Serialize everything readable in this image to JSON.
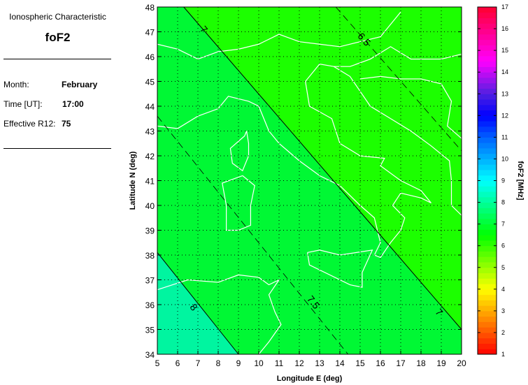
{
  "panel": {
    "heading": "Ionospheric Characteristic",
    "characteristic": "foF2",
    "month_label": "Month:",
    "month": "February",
    "time_label": "Time [UT]:",
    "time": "17:00",
    "r12_label": "Effective R12:",
    "r12": "75"
  },
  "chart_data": {
    "type": "contour-map",
    "xlabel": "Longitude E (deg)",
    "ylabel": "Latitude N (deg)",
    "xlim": [
      5,
      20
    ],
    "ylim": [
      34,
      48
    ],
    "xticks": [
      "5",
      "6",
      "7",
      "8",
      "9",
      "10",
      "11",
      "12",
      "13",
      "14",
      "15",
      "16",
      "17",
      "18",
      "19",
      "20"
    ],
    "yticks": [
      "34",
      "35",
      "36",
      "37",
      "38",
      "39",
      "40",
      "41",
      "42",
      "43",
      "44",
      "45",
      "46",
      "47",
      "48"
    ],
    "grid": true,
    "colorbar": {
      "label": "foF2 [MHz]",
      "range": [
        1,
        17
      ],
      "ticks": [
        "1",
        "2",
        "3",
        "4",
        "5",
        "6",
        "7",
        "8",
        "9",
        "10",
        "11",
        "12",
        "13",
        "14",
        "15",
        "16",
        "17"
      ]
    },
    "regions": [
      {
        "range": "6.5-7",
        "color": "#1cff00"
      },
      {
        "range": "7-7.5",
        "color": "#00f834"
      },
      {
        "range": "7.5-8",
        "color": "#00f834"
      },
      {
        "range": "8-8.5",
        "color": "#00f5a0"
      }
    ],
    "contours": [
      {
        "level": "6.5",
        "style": "dashed",
        "points": [
          [
            13.8,
            48
          ],
          [
            20,
            42.2
          ]
        ],
        "label_at": [
          15.2,
          46.7
        ]
      },
      {
        "level": "7",
        "style": "solid",
        "points": [
          [
            6.3,
            48
          ],
          [
            20,
            35
          ]
        ],
        "label_at": [
          [
            7.3,
            47.1
          ],
          [
            18.9,
            35.7
          ]
        ]
      },
      {
        "level": "7.5",
        "style": "dashed",
        "points": [
          [
            5,
            43.6
          ],
          [
            14.4,
            34
          ]
        ],
        "label_at": [
          12.7,
          36.1
        ]
      },
      {
        "level": "8",
        "style": "solid",
        "points": [
          [
            5,
            38.1
          ],
          [
            9,
            34
          ]
        ],
        "label_at": [
          6.8,
          35.9
        ]
      }
    ],
    "coastlines": [
      [
        [
          5,
          43.2
        ],
        [
          6,
          43.1
        ],
        [
          7,
          43.6
        ],
        [
          8,
          43.9
        ],
        [
          8.5,
          44.4
        ],
        [
          9.5,
          44.2
        ],
        [
          10,
          44
        ],
        [
          10.5,
          43
        ],
        [
          11,
          42.5
        ],
        [
          12,
          41.8
        ],
        [
          13,
          41.2
        ],
        [
          14,
          40.8
        ],
        [
          15,
          40
        ],
        [
          15.7,
          39.5
        ],
        [
          16,
          38.5
        ],
        [
          15.7,
          38
        ],
        [
          16,
          37.9
        ],
        [
          16.5,
          38.5
        ],
        [
          17,
          39
        ],
        [
          17.2,
          39.5
        ],
        [
          16.6,
          40
        ],
        [
          17,
          40.5
        ],
        [
          18,
          40.3
        ],
        [
          18.5,
          40.1
        ],
        [
          18,
          40.6
        ],
        [
          17,
          41
        ],
        [
          16,
          41.6
        ],
        [
          16.2,
          41.9
        ],
        [
          15,
          42
        ],
        [
          14,
          42.5
        ],
        [
          13.6,
          43.5
        ],
        [
          12.5,
          44
        ],
        [
          12.3,
          45
        ],
        [
          13,
          45.7
        ],
        [
          13.7,
          45.6
        ],
        [
          14.5,
          45.2
        ],
        [
          15,
          44.6
        ],
        [
          15.5,
          44
        ],
        [
          16.5,
          43.5
        ],
        [
          17.5,
          43
        ],
        [
          18.5,
          42.4
        ],
        [
          19.4,
          41.8
        ],
        [
          19.5,
          41
        ],
        [
          19.5,
          40
        ],
        [
          20,
          39.6
        ]
      ],
      [
        [
          9.4,
          43
        ],
        [
          9.5,
          42.5
        ],
        [
          9.5,
          42
        ],
        [
          9.2,
          41.4
        ],
        [
          8.7,
          41.7
        ],
        [
          8.6,
          42.3
        ],
        [
          9.3,
          42.8
        ],
        [
          9.4,
          43
        ]
      ],
      [
        [
          9.2,
          41.2
        ],
        [
          9.8,
          40.8
        ],
        [
          9.6,
          40
        ],
        [
          9.6,
          39.2
        ],
        [
          9,
          39
        ],
        [
          8.4,
          39
        ],
        [
          8.4,
          40
        ],
        [
          8.2,
          40.9
        ],
        [
          9.2,
          41.2
        ]
      ],
      [
        [
          12.4,
          38.1
        ],
        [
          13,
          38.2
        ],
        [
          14,
          38
        ],
        [
          15.6,
          38.2
        ],
        [
          15.1,
          37.3
        ],
        [
          15.1,
          36.7
        ],
        [
          14.5,
          36.8
        ],
        [
          12.5,
          37.6
        ],
        [
          12.4,
          38.1
        ]
      ],
      [
        [
          5,
          36.6
        ],
        [
          6.5,
          37
        ],
        [
          8,
          36.9
        ],
        [
          9,
          37.2
        ],
        [
          10,
          37.1
        ],
        [
          10.5,
          36.8
        ],
        [
          11,
          37
        ],
        [
          10.5,
          36.4
        ],
        [
          10.8,
          35.7
        ],
        [
          11.1,
          35.2
        ],
        [
          10.5,
          34.5
        ],
        [
          10,
          34
        ]
      ],
      [
        [
          5,
          46.5
        ],
        [
          6,
          46.3
        ],
        [
          7,
          45.9
        ],
        [
          8,
          46.2
        ],
        [
          9,
          46.3
        ],
        [
          10,
          46.5
        ],
        [
          11,
          46.9
        ],
        [
          12,
          46.6
        ],
        [
          13,
          46.5
        ],
        [
          14,
          46.4
        ],
        [
          15,
          46.6
        ],
        [
          16,
          46.8
        ],
        [
          17,
          47.8
        ]
      ],
      [
        [
          13.7,
          45.6
        ],
        [
          14.5,
          45.6
        ],
        [
          15.5,
          45.9
        ],
        [
          16.5,
          46.4
        ],
        [
          17.5,
          45.9
        ],
        [
          19,
          45.9
        ],
        [
          20,
          46.1
        ]
      ],
      [
        [
          15,
          45.1
        ],
        [
          16,
          45.2
        ],
        [
          17,
          45.1
        ],
        [
          18,
          45.1
        ],
        [
          19,
          44.9
        ],
        [
          19.5,
          44.2
        ],
        [
          19.3,
          43.2
        ],
        [
          20,
          42.7
        ]
      ]
    ]
  }
}
